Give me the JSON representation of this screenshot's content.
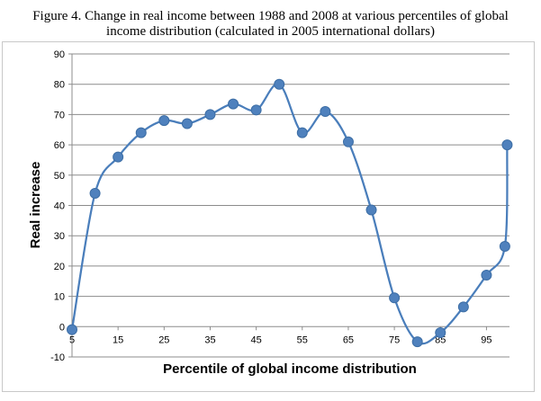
{
  "chart_data": {
    "type": "line",
    "title_line1": "Figure 4. Change in real income between 1988 and 2008 at various percentiles of global",
    "title_line2": "income distribution (calculated in 2005 international dollars)",
    "xlabel": "Percentile of global income distribution",
    "ylabel": "Real increase",
    "ylim": [
      -10,
      90
    ],
    "yticks": [
      -10,
      0,
      10,
      20,
      30,
      40,
      50,
      60,
      70,
      80,
      90
    ],
    "xlim": [
      5,
      100
    ],
    "xtick_values": [
      5,
      15,
      25,
      35,
      45,
      55,
      65,
      75,
      85,
      95
    ],
    "xtick_labels": [
      "5",
      "15",
      "25",
      "35",
      "45",
      "55",
      "65",
      "75",
      "85",
      "95"
    ],
    "grid": "horizontal",
    "smooth": true,
    "color": "#4a7ebb",
    "marker_color": "#4f81bd",
    "series": [
      {
        "x": [
          5,
          10,
          15,
          20,
          25,
          30,
          35,
          40,
          45,
          50,
          55,
          60,
          65,
          70,
          75,
          80,
          85,
          90,
          95,
          99,
          99.5
        ],
        "values": [
          -1,
          44,
          56,
          64,
          68,
          67,
          70,
          73.5,
          71.5,
          80,
          64,
          71,
          61,
          38.5,
          9.5,
          -5,
          -2,
          6.5,
          17,
          26.5,
          60
        ]
      }
    ]
  }
}
